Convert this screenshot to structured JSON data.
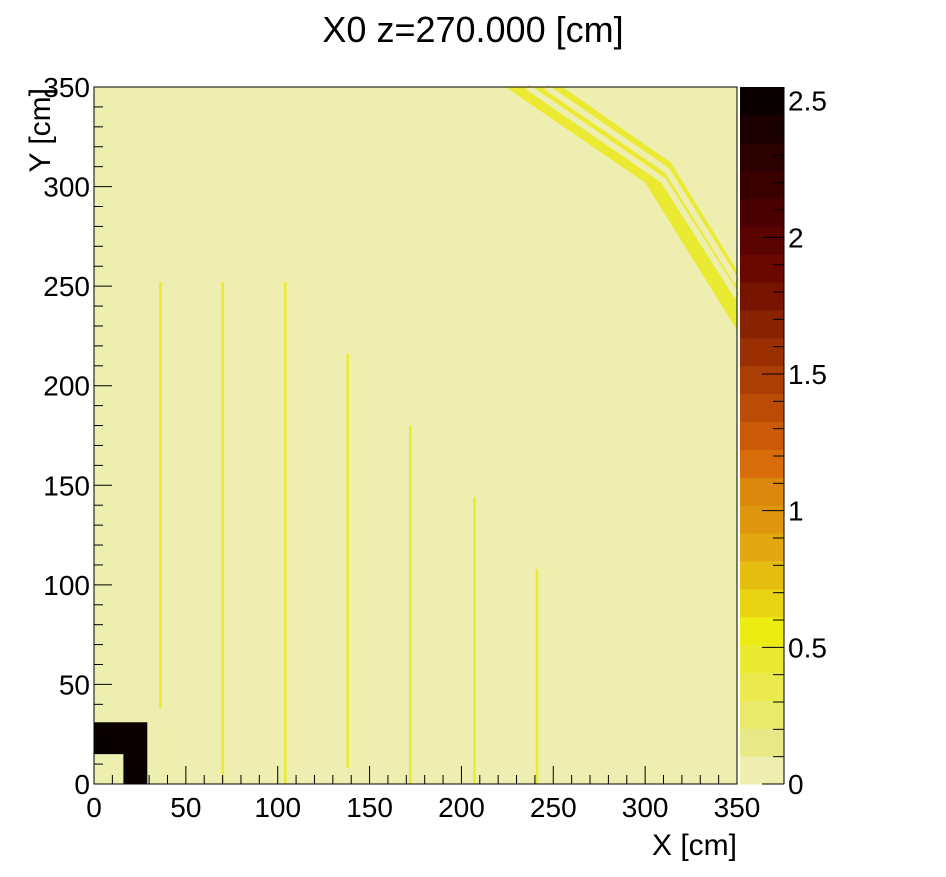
{
  "chart_data": {
    "type": "heatmap",
    "title": "X0 z=270.000 [cm]",
    "xlabel": "X [cm]",
    "ylabel": "Y [cm]",
    "xlim": [
      0,
      350
    ],
    "ylim": [
      0,
      350
    ],
    "zlim": [
      0,
      2.55
    ],
    "x_ticks": [
      0,
      50,
      100,
      150,
      200,
      250,
      300,
      350
    ],
    "y_ticks": [
      0,
      50,
      100,
      150,
      200,
      250,
      300,
      350
    ],
    "z_ticks": [
      0,
      0.5,
      1,
      1.5,
      2,
      2.5
    ],
    "x_tick_labels": [
      "0",
      "50",
      "100",
      "150",
      "200",
      "250",
      "300",
      "350"
    ],
    "y_tick_labels": [
      "0",
      "50",
      "100",
      "150",
      "200",
      "250",
      "300",
      "350"
    ],
    "z_tick_labels": [
      "0",
      "0.5",
      "1",
      "1.5",
      "2",
      "2.5"
    ],
    "background_value": 0.05,
    "palette": [
      "#eeeeb0",
      "#e8e886",
      "#e9e96a",
      "#eaea4e",
      "#ebea32",
      "#ecec12",
      "#e8d412",
      "#e5bc10",
      "#e3a810",
      "#df960e",
      "#db880c",
      "#d86c0a",
      "#cb5a08",
      "#bb4c06",
      "#ab3e04",
      "#9a3002",
      "#882200",
      "#771400",
      "#6a0800",
      "#5a0300",
      "#4a0000",
      "#3a0000",
      "#2a0000",
      "#1a0000",
      "#0a0000"
    ],
    "features": [
      {
        "kind": "vline",
        "x": 36,
        "y0": 38,
        "y1": 252,
        "value": 0.5
      },
      {
        "kind": "vline",
        "x": 70,
        "y0": 0,
        "y1": 252,
        "value": 0.5
      },
      {
        "kind": "vline",
        "x": 104,
        "y0": 0,
        "y1": 252,
        "value": 0.5
      },
      {
        "kind": "vline",
        "x": 138,
        "y0": 8,
        "y1": 216,
        "value": 0.5
      },
      {
        "kind": "vline",
        "x": 172,
        "y0": 0,
        "y1": 180,
        "value": 0.5
      },
      {
        "kind": "vline",
        "x": 207,
        "y0": 0,
        "y1": 144,
        "value": 0.5
      },
      {
        "kind": "vline",
        "x": 241,
        "y0": 0,
        "y1": 108,
        "value": 0.5
      },
      {
        "kind": "block",
        "x0": 0,
        "x1": 29,
        "y0": 0,
        "y1": 31,
        "value": 2.55
      },
      {
        "kind": "block",
        "x0": 0,
        "x1": 16,
        "y0": 0,
        "y1": 15,
        "value": 0.05
      },
      {
        "kind": "band",
        "points": [
          [
            224,
            350
          ],
          [
            255,
            350
          ],
          [
            314,
            312
          ],
          [
            350,
            258
          ],
          [
            350,
            228
          ],
          [
            300,
            302
          ]
        ],
        "value": 0.5
      }
    ]
  }
}
